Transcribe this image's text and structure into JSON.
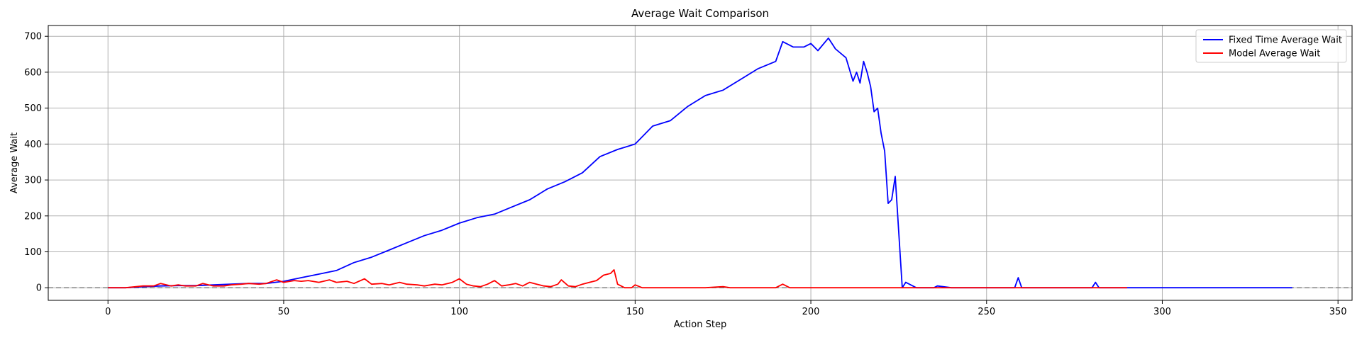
{
  "chart_data": {
    "type": "line",
    "title": "Average Wait Comparison",
    "xlabel": "Action Step",
    "ylabel": "Average Wait",
    "xlim": [
      -17,
      354
    ],
    "ylim": [
      -35,
      730
    ],
    "xticks": [
      0,
      50,
      100,
      150,
      200,
      250,
      300,
      350
    ],
    "yticks": [
      0,
      100,
      200,
      300,
      400,
      500,
      600,
      700
    ],
    "grid": true,
    "legend_position": "top-right",
    "reference_line": {
      "y": 0,
      "style": "dashed",
      "color": "#808080"
    },
    "series": [
      {
        "name": "Fixed Time Average Wait",
        "color": "#0000ff",
        "x": [
          0,
          5,
          10,
          15,
          20,
          25,
          30,
          35,
          40,
          45,
          50,
          55,
          60,
          65,
          70,
          75,
          80,
          85,
          90,
          95,
          100,
          105,
          110,
          115,
          120,
          125,
          130,
          135,
          140,
          145,
          150,
          155,
          160,
          165,
          170,
          175,
          180,
          185,
          190,
          192,
          195,
          198,
          200,
          202,
          205,
          207,
          210,
          212,
          213,
          214,
          215,
          216,
          217,
          218,
          219,
          220,
          221,
          222,
          223,
          224,
          226,
          227,
          230,
          235,
          236,
          240,
          245,
          250,
          255,
          258,
          259,
          260,
          265,
          270,
          275,
          280,
          281,
          282,
          285,
          290,
          300,
          310,
          320,
          330,
          337
        ],
        "y": [
          0,
          0,
          3,
          5,
          6,
          6,
          8,
          10,
          12,
          12,
          18,
          28,
          38,
          48,
          70,
          85,
          105,
          125,
          145,
          160,
          180,
          195,
          205,
          225,
          245,
          275,
          295,
          320,
          365,
          385,
          400,
          450,
          465,
          505,
          535,
          550,
          580,
          610,
          630,
          685,
          670,
          670,
          680,
          660,
          695,
          665,
          640,
          575,
          600,
          570,
          630,
          600,
          560,
          490,
          500,
          430,
          380,
          235,
          245,
          310,
          0,
          15,
          0,
          0,
          5,
          0,
          0,
          0,
          0,
          0,
          28,
          0,
          0,
          0,
          0,
          0,
          15,
          0,
          0,
          0,
          0,
          0,
          0,
          0,
          0
        ]
      },
      {
        "name": "Model Average Wait",
        "color": "#ff0000",
        "x": [
          0,
          5,
          8,
          10,
          13,
          15,
          18,
          20,
          22,
          25,
          27,
          30,
          33,
          35,
          38,
          40,
          43,
          45,
          48,
          50,
          53,
          55,
          57,
          60,
          63,
          65,
          68,
          70,
          73,
          75,
          78,
          80,
          83,
          85,
          88,
          90,
          93,
          95,
          98,
          100,
          102,
          104,
          106,
          108,
          110,
          112,
          114,
          116,
          118,
          120,
          122,
          124,
          126,
          128,
          129,
          131,
          133,
          135,
          137,
          139,
          141,
          143,
          144,
          145,
          147,
          149,
          150,
          152,
          155,
          160,
          165,
          170,
          175,
          177,
          180,
          185,
          190,
          192,
          194,
          200,
          210,
          220,
          230,
          250,
          270,
          290
        ],
        "y": [
          0,
          0,
          3,
          5,
          5,
          12,
          5,
          8,
          5,
          5,
          12,
          5,
          5,
          8,
          10,
          12,
          10,
          12,
          22,
          15,
          20,
          18,
          20,
          15,
          22,
          15,
          18,
          12,
          25,
          10,
          12,
          8,
          15,
          10,
          8,
          5,
          10,
          8,
          15,
          25,
          10,
          5,
          3,
          10,
          20,
          5,
          8,
          12,
          5,
          15,
          10,
          5,
          3,
          10,
          22,
          5,
          3,
          10,
          15,
          20,
          35,
          40,
          50,
          10,
          0,
          0,
          8,
          0,
          0,
          0,
          0,
          0,
          3,
          0,
          0,
          0,
          0,
          10,
          0,
          0,
          0,
          0,
          0,
          0,
          0,
          0
        ]
      }
    ]
  }
}
